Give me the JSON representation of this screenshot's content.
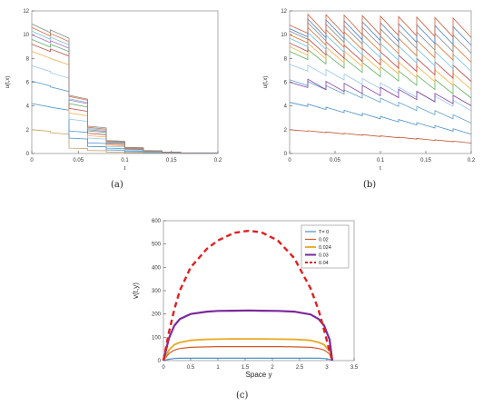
{
  "captions": {
    "a": "(a)",
    "b": "(b)",
    "c": "(c)"
  },
  "chart_data": [
    {
      "type": "line",
      "panel": "a",
      "xlabel": "t",
      "ylabel": "u(t,x)",
      "xlim": [
        0,
        0.2
      ],
      "ylim": [
        0,
        12
      ],
      "xticks": [
        0,
        0.05,
        0.1,
        0.15,
        0.2
      ],
      "yticks": [
        0,
        2,
        4,
        6,
        8,
        10,
        12
      ],
      "x_tick_labels": [
        "0",
        "0.05",
        "0.1",
        "0.15",
        "0.2"
      ],
      "y_tick_labels": [
        "0",
        "2",
        "4",
        "6",
        "8",
        "10",
        "12"
      ],
      "grid": false,
      "kicks": [
        0.02,
        0.04,
        0.06,
        0.08,
        0.1,
        0.12,
        0.14,
        0.16
      ],
      "step_factor": 0.46,
      "decay_rate": 3.5,
      "series": [
        {
          "color": "#c8a060",
          "values": [
            2.0,
            1.75,
            0.45,
            0.25,
            0.12,
            0.06,
            0.03,
            0.02,
            0.01
          ]
        },
        {
          "color": "#4a90c8",
          "values": [
            4.2,
            3.9,
            1.3,
            0.6,
            0.3,
            0.15,
            0.07,
            0.04,
            0.02
          ]
        },
        {
          "color": "#5a9ad0",
          "values": [
            6.1,
            5.6,
            1.9,
            0.9,
            0.45,
            0.22,
            0.1,
            0.05,
            0.02
          ]
        },
        {
          "color": "#9ac8e8",
          "values": [
            7.4,
            6.8,
            2.9,
            1.3,
            0.6,
            0.3,
            0.15,
            0.07,
            0.03
          ]
        },
        {
          "color": "#f0b050",
          "values": [
            8.6,
            8.0,
            3.4,
            1.5,
            0.7,
            0.35,
            0.17,
            0.08,
            0.04
          ]
        },
        {
          "color": "#c05050",
          "values": [
            9.2,
            8.8,
            3.8,
            1.7,
            0.8,
            0.38,
            0.19,
            0.09,
            0.04
          ]
        },
        {
          "color": "#60b070",
          "values": [
            9.6,
            9.2,
            4.2,
            1.9,
            0.9,
            0.42,
            0.2,
            0.1,
            0.05
          ]
        },
        {
          "color": "#b070c0",
          "values": [
            10.0,
            9.5,
            4.5,
            2.0,
            0.95,
            0.45,
            0.22,
            0.1,
            0.05
          ]
        },
        {
          "color": "#70c0d8",
          "values": [
            10.3,
            9.8,
            4.6,
            2.1,
            1.0,
            0.48,
            0.23,
            0.11,
            0.05
          ]
        },
        {
          "color": "#e07040",
          "values": [
            10.6,
            10.1,
            4.8,
            2.2,
            1.05,
            0.5,
            0.24,
            0.11,
            0.05
          ]
        },
        {
          "color": "#888888",
          "values": [
            10.9,
            10.4,
            4.9,
            2.3,
            1.1,
            0.52,
            0.25,
            0.12,
            0.06
          ]
        }
      ]
    },
    {
      "type": "line",
      "panel": "b",
      "xlabel": "t",
      "ylabel": "u(t,x)",
      "xlim": [
        0,
        0.2
      ],
      "ylim": [
        0,
        12
      ],
      "xticks": [
        0,
        0.05,
        0.1,
        0.15,
        0.2
      ],
      "yticks": [
        0,
        2,
        4,
        6,
        8,
        10,
        12
      ],
      "x_tick_labels": [
        "0",
        "0.05",
        "0.1",
        "0.15",
        "0.2"
      ],
      "y_tick_labels": [
        "0",
        "2",
        "4",
        "6",
        "8",
        "10",
        "12"
      ],
      "grid": false,
      "kicks": [
        0.02,
        0.04,
        0.06,
        0.08,
        0.1,
        0.12,
        0.14,
        0.16,
        0.18
      ],
      "series": [
        {
          "color": "#c05030",
          "start": 2.0,
          "end": 0.9,
          "jump": 0.05
        },
        {
          "color": "#4a90c8",
          "start": 4.3,
          "end": 1.7,
          "jump": 0.2
        },
        {
          "color": "#60a0d0",
          "start": 6.2,
          "end": 2.7,
          "jump": 0.35
        },
        {
          "color": "#9ac8e8",
          "start": 7.5,
          "end": 3.8,
          "jump": 0.5
        },
        {
          "color": "#8040a0",
          "start": 6.0,
          "end": 4.3,
          "jump": 0.7
        },
        {
          "color": "#60b060",
          "start": 8.6,
          "end": 5.0,
          "jump": 0.85
        },
        {
          "color": "#f0b040",
          "start": 9.0,
          "end": 5.8,
          "jump": 1.0
        },
        {
          "color": "#c04040",
          "start": 9.3,
          "end": 6.5,
          "jump": 1.1
        },
        {
          "color": "#70c0e0",
          "start": 9.7,
          "end": 7.4,
          "jump": 1.2
        },
        {
          "color": "#e07030",
          "start": 10.0,
          "end": 8.2,
          "jump": 1.3
        },
        {
          "color": "#888888",
          "start": 10.3,
          "end": 9.0,
          "jump": 1.4
        },
        {
          "color": "#4a80c0",
          "start": 10.5,
          "end": 9.7,
          "jump": 1.5
        },
        {
          "color": "#d06040",
          "start": 10.8,
          "end": 10.4,
          "jump": 1.6
        }
      ]
    },
    {
      "type": "line",
      "panel": "c",
      "xlabel": "Space y",
      "ylabel": "v(t,y)",
      "xlim": [
        0,
        3.5
      ],
      "ylim": [
        0,
        600
      ],
      "xticks": [
        0,
        0.5,
        1,
        1.5,
        2,
        2.5,
        3,
        3.5
      ],
      "yticks": [
        0,
        100,
        200,
        300,
        400,
        500,
        600
      ],
      "x_tick_labels": [
        "0",
        "0.5",
        "1",
        "1.5",
        "2",
        "2.5",
        "3",
        "3.5"
      ],
      "y_tick_labels": [
        "0",
        "100",
        "200",
        "300",
        "400",
        "500",
        "600"
      ],
      "grid": false,
      "legend": "top-right",
      "x": [
        0,
        0.1,
        0.2,
        0.3,
        0.5,
        0.8,
        1.0,
        1.3,
        1.57,
        1.8,
        2.1,
        2.4,
        2.7,
        2.85,
        2.95,
        3.05,
        3.1
      ],
      "series": [
        {
          "name": "T= 0",
          "color": "#4a90c8",
          "dash": false,
          "width": 1.2,
          "values": [
            0,
            6,
            9,
            10,
            10,
            10,
            10,
            10,
            10,
            10,
            10,
            10,
            10,
            10,
            9,
            5,
            0
          ]
        },
        {
          "name": "0.02",
          "color": "#d05a28",
          "dash": false,
          "width": 1.2,
          "values": [
            0,
            30,
            45,
            52,
            57,
            59,
            60,
            60,
            60,
            60,
            60,
            59,
            57,
            52,
            45,
            28,
            0
          ]
        },
        {
          "name": "0.024",
          "color": "#e8a820",
          "dash": false,
          "width": 1.8,
          "values": [
            0,
            45,
            68,
            78,
            87,
            91,
            92,
            93,
            93,
            93,
            92,
            91,
            87,
            78,
            68,
            40,
            0
          ]
        },
        {
          "name": "0.03",
          "color": "#7a2a9a",
          "dash": false,
          "width": 2.2,
          "values": [
            0,
            95,
            150,
            178,
            200,
            210,
            213,
            214,
            215,
            214,
            213,
            210,
            198,
            178,
            150,
            90,
            0
          ]
        },
        {
          "name": "0.04",
          "color": "#e02020",
          "dash": true,
          "width": 2.4,
          "values": [
            0,
            120,
            220,
            300,
            400,
            480,
            515,
            548,
            557,
            550,
            515,
            440,
            310,
            215,
            130,
            40,
            0
          ]
        }
      ]
    }
  ]
}
